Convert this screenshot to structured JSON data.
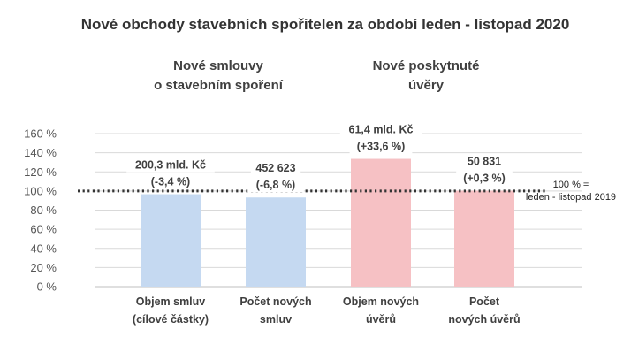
{
  "chart_data": {
    "type": "bar",
    "title": "Nové obchody stavebních spořitelen za období leden - listopad 2020",
    "groups": [
      {
        "lines": [
          "Nové smlouvy",
          "o stavebním spoření"
        ]
      },
      {
        "lines": [
          "Nové poskytnuté",
          "úvěry"
        ]
      }
    ],
    "categories": [
      [
        "Objem smluv",
        "(cílové částky)"
      ],
      [
        "Počet  nových",
        "smluv"
      ],
      [
        "Objem nových",
        "úvěrů"
      ],
      [
        "Počet",
        "nových úvěrů"
      ]
    ],
    "values": [
      96.6,
      93.2,
      133.6,
      100.3
    ],
    "data_labels": [
      [
        "200,3 mld. Kč",
        "(-3,4 %)"
      ],
      [
        "452 623",
        "(-6,8 %)"
      ],
      [
        "61,4 mld. Kč",
        "(+33,6 %)"
      ],
      [
        "50 831",
        "(+0,3 %)"
      ]
    ],
    "colors": [
      "#c5d9f1",
      "#c5d9f1",
      "#f6c1c4",
      "#f6c1c4"
    ],
    "yticks": [
      "0 %",
      "20 %",
      "40 %",
      "60 %",
      "80 %",
      "100 %",
      "120 %",
      "140 %",
      "160 %"
    ],
    "ylim": [
      0,
      160
    ],
    "grid": true,
    "reference_line": {
      "value": 100,
      "lines": [
        "100 % =",
        "leden - listopad 2019"
      ]
    }
  }
}
